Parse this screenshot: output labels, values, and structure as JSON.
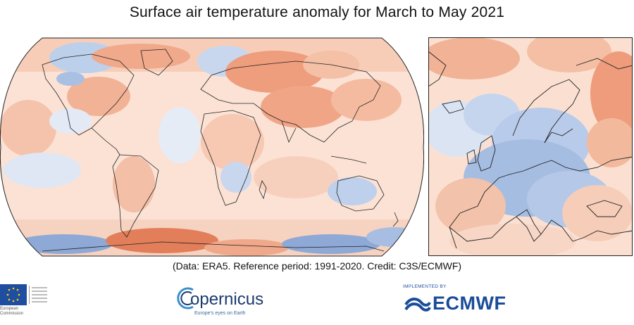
{
  "title": "Surface air temperature anomaly for March to May 2021",
  "caption": "(Data: ERA5.  Reference period: 1991-2020.  Credit: C3S/ECMWF)",
  "logos": {
    "eu_text_line1": "European",
    "eu_text_line2": "Commission",
    "copernicus_word": "opernicus",
    "copernicus_sub": "Europe's eyes on Earth",
    "ecmwf_top": "IMPLEMENTED BY",
    "ecmwf_word": "ECMWF"
  },
  "colors": {
    "warm_strong": "#e0744f",
    "warm": "#f3b49a",
    "warm_light": "#fbd9c8",
    "neutral": "#f4f1ef",
    "cool_light": "#d9e3f2",
    "cool": "#a8bfe0",
    "cool_strong": "#6c8fc9",
    "coast": "#222222",
    "eu_blue": "#1f4ea0",
    "ecmwf_blue": "#1a4c9a"
  },
  "panels": {
    "world": "global",
    "europe": "Europe"
  }
}
